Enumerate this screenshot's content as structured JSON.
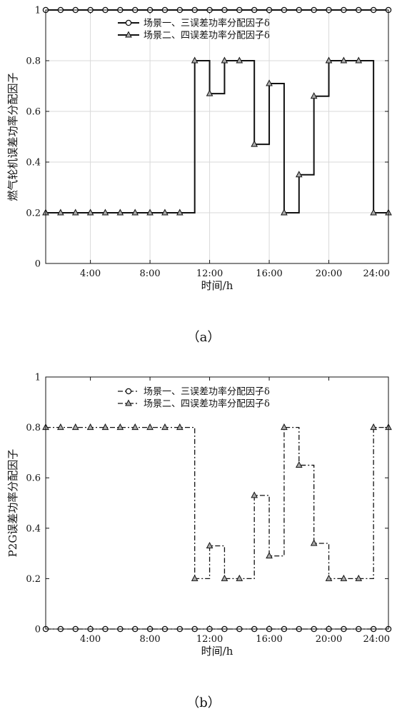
{
  "chart_data": [
    {
      "type": "line",
      "caption": "（a）",
      "xlabel": "时间/h",
      "ylabel": "燃气轮机误差功率分配因子",
      "xlim": [
        1,
        24
      ],
      "ylim": [
        0,
        1
      ],
      "xticks": [
        4,
        8,
        12,
        16,
        20,
        24
      ],
      "xtick_labels": [
        "4:00",
        "8:00",
        "12:00",
        "16:00",
        "20:00",
        "24:00"
      ],
      "yticks": [
        0,
        0.2,
        0.4,
        0.6,
        0.8,
        1
      ],
      "ytick_labels": [
        "0",
        "0.2",
        "0.4",
        "0.6",
        "0.8",
        "1"
      ],
      "grid": true,
      "legend": "top-center",
      "line_style": "solid",
      "x": [
        1,
        2,
        3,
        4,
        5,
        6,
        7,
        8,
        9,
        10,
        11,
        12,
        13,
        14,
        15,
        16,
        17,
        18,
        19,
        20,
        21,
        22,
        23,
        24
      ],
      "series": [
        {
          "name": "场景一、三误差功率分配因子δ",
          "marker": "circle",
          "values": [
            1,
            1,
            1,
            1,
            1,
            1,
            1,
            1,
            1,
            1,
            1,
            1,
            1,
            1,
            1,
            1,
            1,
            1,
            1,
            1,
            1,
            1,
            1,
            1
          ]
        },
        {
          "name": "场景二、四误差功率分配因子δ",
          "marker": "triangle",
          "values": [
            0.2,
            0.2,
            0.2,
            0.2,
            0.2,
            0.2,
            0.2,
            0.2,
            0.2,
            0.2,
            0.8,
            0.67,
            0.8,
            0.8,
            0.47,
            0.71,
            0.2,
            0.35,
            0.66,
            0.8,
            0.8,
            0.8,
            0.2,
            0.2
          ]
        }
      ]
    },
    {
      "type": "line",
      "caption": "（b）",
      "xlabel": "时间/h",
      "ylabel": "P2G误差功率分配因子",
      "xlim": [
        1,
        24
      ],
      "ylim": [
        0,
        1
      ],
      "xticks": [
        4,
        8,
        12,
        16,
        20,
        24
      ],
      "xtick_labels": [
        "4:00",
        "8:00",
        "12:00",
        "16:00",
        "20:00",
        "24:00"
      ],
      "yticks": [
        0,
        0.2,
        0.4,
        0.6,
        0.8,
        1
      ],
      "ytick_labels": [
        "0",
        "0.2",
        "0.4",
        "0.6",
        "0.8",
        "1"
      ],
      "grid": false,
      "legend": "top-center",
      "line_style": "dashdot",
      "x": [
        1,
        2,
        3,
        4,
        5,
        6,
        7,
        8,
        9,
        10,
        11,
        12,
        13,
        14,
        15,
        16,
        17,
        18,
        19,
        20,
        21,
        22,
        23,
        24
      ],
      "series": [
        {
          "name": "场景一、三误差功率分配因子δ",
          "marker": "circle",
          "values": [
            0,
            0,
            0,
            0,
            0,
            0,
            0,
            0,
            0,
            0,
            0,
            0,
            0,
            0,
            0,
            0,
            0,
            0,
            0,
            0,
            0,
            0,
            0,
            0
          ]
        },
        {
          "name": "场景二、四误差功率分配因子δ",
          "marker": "triangle",
          "values": [
            0.8,
            0.8,
            0.8,
            0.8,
            0.8,
            0.8,
            0.8,
            0.8,
            0.8,
            0.8,
            0.2,
            0.33,
            0.2,
            0.2,
            0.53,
            0.29,
            0.8,
            0.65,
            0.34,
            0.2,
            0.2,
            0.2,
            0.8,
            0.8
          ]
        }
      ]
    }
  ]
}
